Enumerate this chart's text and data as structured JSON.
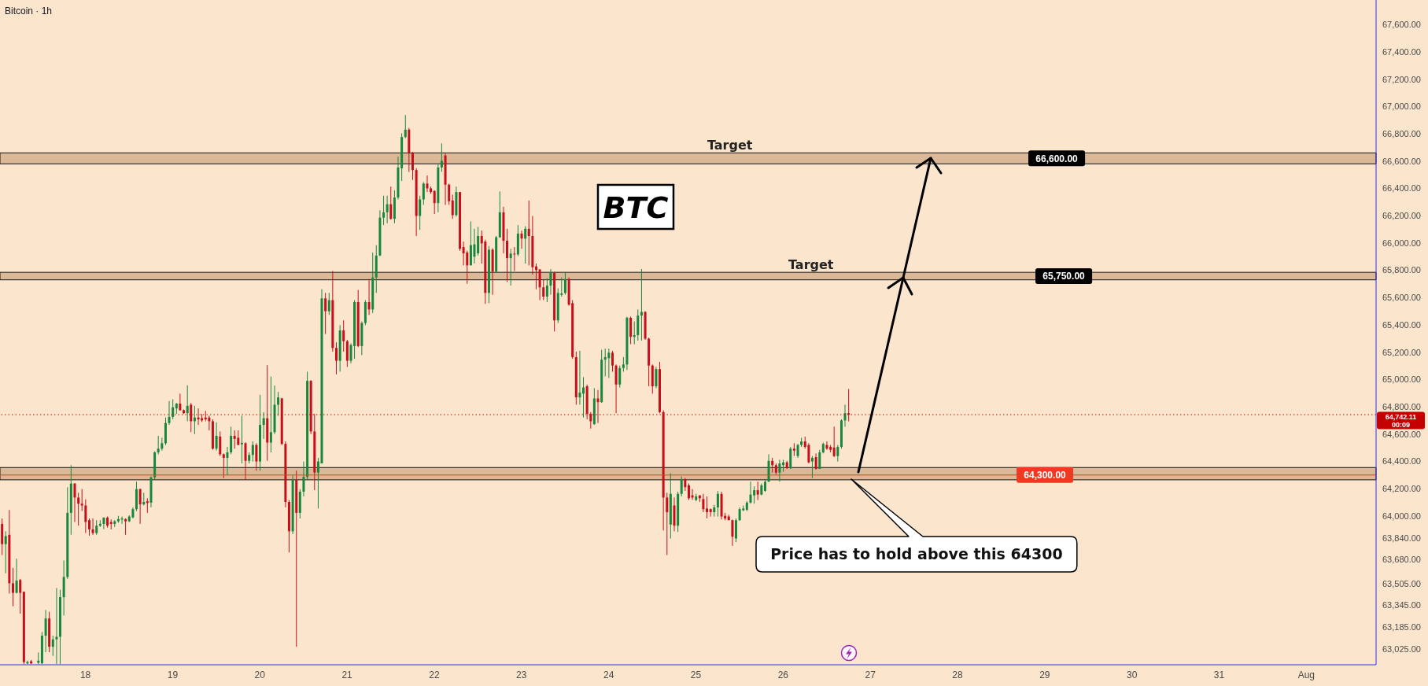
{
  "chart_data": {
    "type": "candlestick",
    "title": "Bitcoin · 1h",
    "x": [
      17.042,
      17.083,
      17.125,
      17.167,
      17.208,
      17.25,
      17.292,
      17.333,
      17.375,
      17.458,
      17.5,
      17.542,
      17.583,
      17.625,
      17.667,
      17.708,
      17.75,
      17.792,
      17.833,
      17.875,
      17.917,
      17.958,
      18,
      18.042,
      18.083,
      18.125,
      18.167,
      18.208,
      18.25,
      18.292,
      18.333,
      18.375,
      18.417,
      18.458,
      18.5,
      18.542,
      18.583,
      18.625,
      18.667,
      18.708,
      18.75,
      18.792,
      18.833,
      18.875,
      18.917,
      18.958,
      19,
      19.042,
      19.083,
      19.125,
      19.167,
      19.208,
      19.25,
      19.292,
      19.333,
      19.375,
      19.417,
      19.458,
      19.5,
      19.542,
      19.583,
      19.625,
      19.667,
      19.708,
      19.75,
      19.792,
      19.833,
      19.875,
      19.917,
      19.958,
      20,
      20.042,
      20.083,
      20.125,
      20.167,
      20.208,
      20.25,
      20.292,
      20.333,
      20.375,
      20.417,
      20.458,
      20.5,
      20.542,
      20.583,
      20.625,
      20.667,
      20.708,
      20.75,
      20.792,
      20.833,
      20.875,
      20.917,
      20.958,
      21,
      21.042,
      21.083,
      21.125,
      21.167,
      21.208,
      21.25,
      21.292,
      21.333,
      21.375,
      21.417,
      21.458,
      21.5,
      21.542,
      21.583,
      21.625,
      21.667,
      21.708,
      21.75,
      21.792,
      21.833,
      21.875,
      21.917,
      21.958,
      22,
      22.042,
      22.083,
      22.125,
      22.167,
      22.208,
      22.25,
      22.292,
      22.333,
      22.375,
      22.417,
      22.458,
      22.5,
      22.542,
      22.583,
      22.625,
      22.667,
      22.708,
      22.75,
      22.792,
      22.833,
      22.875,
      22.917,
      22.958,
      23,
      23.042,
      23.083,
      23.125,
      23.167,
      23.208,
      23.25,
      23.292,
      23.333,
      23.375,
      23.417,
      23.458,
      23.5,
      23.542,
      23.583,
      23.625,
      23.667,
      23.708,
      23.75,
      23.792,
      23.833,
      23.875,
      23.917,
      23.958,
      24,
      24.042,
      24.083,
      24.125,
      24.167,
      24.208,
      24.25,
      24.292,
      24.333,
      24.375,
      24.417,
      24.458,
      24.5,
      24.542,
      24.583,
      24.625,
      24.667,
      24.708,
      24.75,
      24.792,
      24.833,
      24.875,
      24.917,
      24.958,
      25,
      25.042,
      25.083,
      25.125,
      25.167,
      25.208,
      25.25,
      25.292,
      25.333,
      25.375,
      25.417,
      25.458,
      25.5,
      25.542,
      25.583,
      25.625,
      25.667,
      25.708,
      25.75,
      25.792,
      25.833,
      25.875,
      25.917,
      25.958,
      26,
      26.042,
      26.083,
      26.125,
      26.167,
      26.208,
      26.25,
      26.292,
      26.333,
      26.375,
      26.417,
      26.458,
      26.5,
      26.542,
      26.583,
      26.625,
      26.667,
      26.708,
      26.75
    ],
    "ohlc": [
      [
        63942,
        63982,
        63714,
        63794
      ],
      [
        63794,
        63888,
        63580,
        63853
      ],
      [
        63862,
        64044,
        63432,
        63507
      ],
      [
        63507,
        63620,
        63338,
        63437
      ],
      [
        63437,
        63687,
        63432,
        63526
      ],
      [
        63531,
        63539,
        63284,
        63437
      ],
      [
        63445,
        63445,
        62915,
        62930
      ],
      [
        62920,
        62940,
        62915,
        62930
      ],
      [
        62935,
        62945,
        62915,
        62920
      ],
      [
        62925,
        63000,
        62915,
        62940
      ],
      [
        62921,
        63150,
        62915,
        63123
      ],
      [
        63123,
        63311,
        63002,
        63249
      ],
      [
        63249,
        63298,
        63002,
        63042
      ],
      [
        63042,
        63123,
        62975,
        63096
      ],
      [
        63096,
        63472,
        62915,
        63115
      ],
      [
        63115,
        63459,
        62915,
        63405
      ],
      [
        63405,
        63674,
        63271,
        63553
      ],
      [
        63553,
        64211,
        63539,
        64023
      ],
      [
        64023,
        64372,
        63862,
        64238
      ],
      [
        64238,
        64240,
        63956,
        64135
      ],
      [
        64135,
        64170,
        63929,
        64090
      ],
      [
        64090,
        64197,
        64036,
        64077
      ],
      [
        64077,
        64122,
        63875,
        63956
      ],
      [
        63969,
        63982,
        63856,
        63902
      ],
      [
        63902,
        63982,
        63862,
        63875
      ],
      [
        63875,
        63969,
        63862,
        63929
      ],
      [
        63929,
        63969,
        63920,
        63942
      ],
      [
        63942,
        63990,
        63902,
        63988
      ],
      [
        63988,
        63996,
        63915,
        63929
      ],
      [
        63956,
        63975,
        63902,
        63942
      ],
      [
        63942,
        63969,
        63920,
        63961
      ],
      [
        63961,
        64001,
        63950,
        63977
      ],
      [
        63974,
        63996,
        63942,
        63982
      ],
      [
        63977,
        63982,
        63862,
        63961
      ],
      [
        63961,
        64005,
        63955,
        63996
      ],
      [
        63990,
        64063,
        63982,
        64050
      ],
      [
        64050,
        64251,
        64036,
        64197
      ],
      [
        64197,
        64200,
        63942,
        64085
      ],
      [
        64085,
        64170,
        64077,
        64103
      ],
      [
        64108,
        64130,
        64023,
        64095
      ],
      [
        64098,
        64291,
        64063,
        64283
      ],
      [
        64283,
        64474,
        64264,
        64466
      ],
      [
        64466,
        64587,
        64452,
        64493
      ],
      [
        64493,
        64573,
        64479,
        64533
      ],
      [
        64533,
        64721,
        64520,
        64681
      ],
      [
        64681,
        64842,
        64667,
        64726
      ],
      [
        64726,
        64855,
        64708,
        64796
      ],
      [
        64788,
        64828,
        64748,
        64823
      ],
      [
        64823,
        64896,
        64770,
        64775
      ],
      [
        64775,
        64780,
        64748,
        64753
      ],
      [
        64753,
        64957,
        64694,
        64807
      ],
      [
        64815,
        64828,
        64614,
        64694
      ],
      [
        64694,
        64807,
        64600,
        64721
      ],
      [
        64721,
        64788,
        64667,
        64708
      ],
      [
        64716,
        64748,
        64689,
        64700
      ],
      [
        64721,
        64770,
        64694,
        64708
      ],
      [
        64721,
        64735,
        64627,
        64694
      ],
      [
        64694,
        64708,
        64485,
        64493
      ],
      [
        64493,
        64686,
        64479,
        64587
      ],
      [
        64582,
        64619,
        64439,
        64452
      ],
      [
        64452,
        64458,
        64278,
        64426
      ],
      [
        64426,
        64506,
        64297,
        64466
      ],
      [
        64466,
        64654,
        64452,
        64587
      ],
      [
        64587,
        64627,
        64493,
        64565
      ],
      [
        64573,
        64627,
        64520,
        64520
      ],
      [
        64525,
        64734,
        64385,
        64536
      ],
      [
        64533,
        64540,
        64264,
        64404
      ],
      [
        64404,
        64466,
        64385,
        64447
      ],
      [
        64447,
        64547,
        64398,
        64520
      ],
      [
        64520,
        64533,
        64332,
        64399
      ],
      [
        64399,
        64888,
        64332,
        64667
      ],
      [
        64667,
        64761,
        64565,
        64716
      ],
      [
        64716,
        65105,
        64404,
        64538
      ],
      [
        64538,
        65022,
        64466,
        64614
      ],
      [
        64614,
        64955,
        64600,
        64815
      ],
      [
        64815,
        64909,
        64734,
        64869
      ],
      [
        64861,
        64866,
        64520,
        64528
      ],
      [
        64528,
        64546,
        64063,
        64103
      ],
      [
        64103,
        64117,
        63733,
        63888
      ],
      [
        63888,
        64297,
        63867,
        64264
      ],
      [
        64264,
        64332,
        63042,
        64023
      ],
      [
        64023,
        64197,
        63982,
        64178
      ],
      [
        64178,
        64399,
        64143,
        64286
      ],
      [
        64286,
        65057,
        64264,
        64990
      ],
      [
        64990,
        64995,
        64600,
        64619
      ],
      [
        64619,
        64748,
        64189,
        64318
      ],
      [
        64318,
        64426,
        64055,
        64399
      ],
      [
        64385,
        65661,
        64385,
        65594
      ],
      [
        65594,
        65634,
        65333,
        65500
      ],
      [
        65500,
        65634,
        65473,
        65581
      ],
      [
        65581,
        65795,
        65204,
        65231
      ],
      [
        65231,
        65272,
        65038,
        65137
      ],
      [
        65137,
        65398,
        65057,
        65360
      ],
      [
        65360,
        65433,
        65204,
        65280
      ],
      [
        65280,
        65290,
        65092,
        65137
      ],
      [
        65137,
        65264,
        65119,
        65253
      ],
      [
        65245,
        65581,
        65151,
        65567
      ],
      [
        65567,
        65656,
        65237,
        65245
      ],
      [
        65245,
        65425,
        65178,
        65414
      ],
      [
        65414,
        65581,
        65398,
        65567
      ],
      [
        65567,
        65736,
        65473,
        65513
      ],
      [
        65513,
        65930,
        65487,
        65747
      ],
      [
        65747,
        65984,
        65634,
        65908
      ],
      [
        65908,
        66239,
        65903,
        66185
      ],
      [
        66185,
        66346,
        66131,
        66225
      ],
      [
        66225,
        66346,
        66145,
        66284
      ],
      [
        66284,
        66413,
        66171,
        66177
      ],
      [
        66177,
        66386,
        66145,
        66333
      ],
      [
        66333,
        66633,
        66319,
        66553
      ],
      [
        66547,
        66803,
        66454,
        66776
      ],
      [
        66776,
        66937,
        66768,
        66830
      ],
      [
        66830,
        66843,
        66521,
        66660
      ],
      [
        66660,
        66668,
        66462,
        66534
      ],
      [
        66534,
        66548,
        66051,
        66198
      ],
      [
        66198,
        66346,
        66096,
        66319
      ],
      [
        66319,
        66446,
        66279,
        66435
      ],
      [
        66435,
        66494,
        66373,
        66400
      ],
      [
        66400,
        66413,
        66360,
        66373
      ],
      [
        66381,
        66386,
        66212,
        66292
      ],
      [
        66292,
        66574,
        66225,
        66553
      ],
      [
        66553,
        66730,
        66521,
        66601
      ],
      [
        66641,
        66655,
        66279,
        66427
      ],
      [
        66427,
        66435,
        66279,
        66306
      ],
      [
        66311,
        66354,
        66177,
        66204
      ],
      [
        66204,
        66413,
        66193,
        66373
      ],
      [
        66373,
        66373,
        65943,
        65957
      ],
      [
        65970,
        66010,
        65836,
        65924
      ],
      [
        65930,
        65943,
        65701,
        65836
      ],
      [
        65836,
        66158,
        65836,
        65984
      ],
      [
        65900,
        66104,
        65850,
        65990
      ],
      [
        65924,
        66118,
        65908,
        66051
      ],
      [
        66051,
        66091,
        65849,
        65997
      ],
      [
        66010,
        66024,
        65554,
        65634
      ],
      [
        65634,
        65978,
        65559,
        65951
      ],
      [
        65951,
        65962,
        65620,
        65790
      ],
      [
        65790,
        66051,
        65782,
        66042
      ],
      [
        66042,
        66378,
        66037,
        66225
      ],
      [
        66225,
        66265,
        65924,
        66016
      ],
      [
        66016,
        66104,
        65715,
        65889
      ],
      [
        65889,
        65957,
        65688,
        65922
      ],
      [
        65922,
        65970,
        65795,
        65916
      ],
      [
        65916,
        66131,
        65903,
        66069
      ],
      [
        66069,
        66091,
        65957,
        66032
      ],
      [
        66032,
        66123,
        65849,
        66104
      ],
      [
        66104,
        66311,
        65836,
        66051
      ],
      [
        66051,
        66198,
        65769,
        65822
      ],
      [
        65828,
        65849,
        65661,
        65801
      ],
      [
        65806,
        65809,
        65581,
        65675
      ],
      [
        65675,
        65728,
        65581,
        65607
      ],
      [
        65607,
        65742,
        65567,
        65688
      ],
      [
        65688,
        65809,
        65621,
        65782
      ],
      [
        65782,
        65790,
        65352,
        65433
      ],
      [
        65433,
        65667,
        65414,
        65634
      ],
      [
        65620,
        65747,
        65607,
        65630
      ],
      [
        65634,
        65782,
        65621,
        65736
      ],
      [
        65736,
        65747,
        65540,
        65548
      ],
      [
        65559,
        65581,
        65151,
        65164
      ],
      [
        65164,
        65204,
        64815,
        64869
      ],
      [
        64869,
        65210,
        64815,
        64904
      ],
      [
        64896,
        65017,
        64721,
        64941
      ],
      [
        64950,
        64963,
        64708,
        64748
      ],
      [
        64748,
        64761,
        64640,
        64694
      ],
      [
        64673,
        64936,
        64667,
        64861
      ],
      [
        64861,
        64923,
        64681,
        64834
      ],
      [
        64834,
        65218,
        64829,
        65145
      ],
      [
        65145,
        65226,
        65022,
        65164
      ],
      [
        65156,
        65226,
        65011,
        65196
      ],
      [
        65196,
        65210,
        65057,
        65102
      ],
      [
        65102,
        65110,
        64753,
        64963
      ],
      [
        64963,
        65102,
        64941,
        65084
      ],
      [
        65084,
        65164,
        65057,
        65110
      ],
      [
        65110,
        65460,
        65070,
        65452
      ],
      [
        65452,
        65460,
        65258,
        65312
      ],
      [
        65312,
        65425,
        65258,
        65325
      ],
      [
        65325,
        65513,
        65285,
        65468
      ],
      [
        65468,
        65809,
        65285,
        65495
      ],
      [
        65495,
        65500,
        65290,
        65299
      ],
      [
        65299,
        65306,
        64950,
        65102
      ],
      [
        65102,
        65110,
        64896,
        64950
      ],
      [
        64950,
        65092,
        64936,
        65076
      ],
      [
        65076,
        65129,
        64753,
        64761
      ],
      [
        64761,
        64775,
        63894,
        64135
      ],
      [
        64135,
        64170,
        63714,
        64028
      ],
      [
        63937,
        64313,
        63835,
        64162
      ],
      [
        64077,
        64135,
        63888,
        63929
      ],
      [
        63929,
        64178,
        63883,
        64162
      ],
      [
        64162,
        64291,
        64143,
        64270
      ],
      [
        64270,
        64278,
        64184,
        64211
      ],
      [
        64224,
        64238,
        64117,
        64130
      ],
      [
        64151,
        64197,
        64117,
        64135
      ],
      [
        64117,
        64162,
        64109,
        64143
      ],
      [
        64151,
        64151,
        64103,
        64130
      ],
      [
        64124,
        64162,
        64028,
        64050
      ],
      [
        64055,
        64143,
        63982,
        64028
      ],
      [
        64050,
        64055,
        63996,
        64028
      ],
      [
        64028,
        64082,
        63996,
        64063
      ],
      [
        64063,
        64184,
        63996,
        64162
      ],
      [
        64162,
        64178,
        63974,
        63996
      ],
      [
        64001,
        64023,
        63969,
        63982
      ],
      [
        63996,
        64009,
        63969,
        63969
      ],
      [
        63969,
        63974,
        63781,
        63848
      ],
      [
        63835,
        63982,
        63808,
        63969
      ],
      [
        63969,
        64063,
        63964,
        64050
      ],
      [
        64042,
        64077,
        64036,
        64055
      ],
      [
        64045,
        64109,
        64036,
        64098
      ],
      [
        64098,
        64251,
        64090,
        64157
      ],
      [
        64151,
        64216,
        64090,
        64189
      ],
      [
        64189,
        64251,
        64117,
        64157
      ],
      [
        64157,
        64238,
        64151,
        64224
      ],
      [
        64184,
        64264,
        64176,
        64251
      ],
      [
        64251,
        64452,
        64251,
        64404
      ],
      [
        64404,
        64426,
        64318,
        64372
      ],
      [
        64372,
        64385,
        64305,
        64318
      ],
      [
        64318,
        64412,
        64251,
        64385
      ],
      [
        64372,
        64412,
        64324,
        64393
      ],
      [
        64393,
        64404,
        64345,
        64350
      ],
      [
        64350,
        64506,
        64345,
        64493
      ],
      [
        64493,
        64533,
        64439,
        64479
      ],
      [
        64439,
        64528,
        64426,
        64520
      ],
      [
        64520,
        64573,
        64506,
        64546
      ],
      [
        64546,
        64581,
        64493,
        64506
      ],
      [
        64520,
        64533,
        64385,
        64393
      ],
      [
        64399,
        64439,
        64278,
        64426
      ],
      [
        64431,
        64458,
        64340,
        64345
      ],
      [
        64345,
        64485,
        64345,
        64466
      ],
      [
        64466,
        64538,
        64458,
        64528
      ],
      [
        64520,
        64546,
        64485,
        64493
      ],
      [
        64506,
        64520,
        64466,
        64485
      ],
      [
        64501,
        64654,
        64431,
        64439
      ],
      [
        64439,
        64520,
        64399,
        64506
      ],
      [
        64506,
        64708,
        64493,
        64700
      ],
      [
        64700,
        64815,
        64654,
        64753
      ],
      [
        64753,
        64930,
        64694,
        64742.11
      ]
    ],
    "xlim": [
      17.02,
      32.8
    ],
    "xticks": [
      18,
      19,
      20,
      21,
      22,
      23,
      24,
      25,
      26,
      27,
      28,
      29,
      30,
      31,
      {
        "value": 32,
        "label": "Aug"
      }
    ],
    "ylim": [
      62910,
      67780
    ],
    "yticks": [
      {
        "value": 63025,
        "label": "63,025.00"
      },
      {
        "value": 63185,
        "label": "63,185.00"
      },
      {
        "value": 63345,
        "label": "63,345.00"
      },
      {
        "value": 63505,
        "label": "63,505.00"
      },
      {
        "value": 63680,
        "label": "63,680.00"
      },
      {
        "value": 63840,
        "label": "63,840.00"
      },
      {
        "value": 64000,
        "label": "64,000.00"
      },
      {
        "value": 64200,
        "label": "64,200.00"
      },
      {
        "value": 64400,
        "label": "64,400.00"
      },
      {
        "value": 64600,
        "label": "64,600.00"
      },
      {
        "value": 64800,
        "label": "64,800.00"
      },
      {
        "value": 65000,
        "label": "65,000.00"
      },
      {
        "value": 65200,
        "label": "65,200.00"
      },
      {
        "value": 65400,
        "label": "65,400.00"
      },
      {
        "value": 65600,
        "label": "65,600.00"
      },
      {
        "value": 65800,
        "label": "65,800.00"
      },
      {
        "value": 66000,
        "label": "66,000.00"
      },
      {
        "value": 66200,
        "label": "66,200.00"
      },
      {
        "value": 66400,
        "label": "66,400.00"
      },
      {
        "value": 66600,
        "label": "66,600.00"
      },
      {
        "value": 66800,
        "label": "66,800.00"
      },
      {
        "value": 67000,
        "label": "67,000.00"
      },
      {
        "value": 67200,
        "label": "67,200.00"
      },
      {
        "value": 67400,
        "label": "67,400.00"
      },
      {
        "value": 67600,
        "label": "67,600.00"
      }
    ],
    "bands": [
      {
        "axis": "y",
        "from": 66580,
        "to": 66660,
        "label": "66,600.00",
        "color": "#dbb898"
      },
      {
        "axis": "y",
        "from": 65730,
        "to": 65785,
        "label": "65,750.00",
        "color": "#dbb898"
      },
      {
        "axis": "y",
        "from": 64265,
        "to": 64355,
        "color": "#dbb898"
      }
    ],
    "ref_lines": [
      {
        "axis": "y",
        "value": 64300,
        "label": "64,300.00",
        "color": "#ee3a22"
      },
      {
        "axis": "y",
        "value": 64742.11,
        "label": "64,742.11\n00:09",
        "color": "#c40000",
        "line_style": "dotted"
      }
    ],
    "annotations": [
      "BTC",
      {
        "text": "Target",
        "x": 25.39,
        "y": 66660
      },
      {
        "text": "Target",
        "x": 26.32,
        "y": 65785
      },
      "Price has to hold above this 64300"
    ]
  }
}
